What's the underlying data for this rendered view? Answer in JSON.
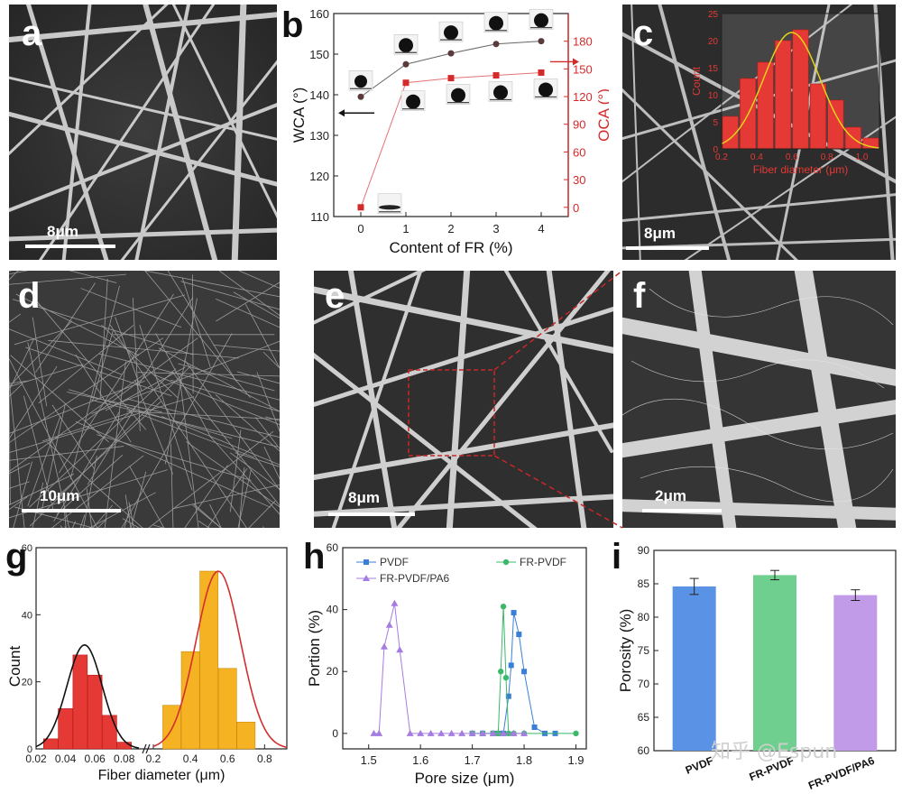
{
  "panels": {
    "a": {
      "label": "a",
      "scale": "8μm"
    },
    "b": {
      "label": "b"
    },
    "c": {
      "label": "c",
      "scale": "8μm"
    },
    "d": {
      "label": "d",
      "scale": "10μm"
    },
    "e": {
      "label": "e",
      "scale": "8μm"
    },
    "f": {
      "label": "f",
      "scale": "2μm"
    },
    "g": {
      "label": "g"
    },
    "h": {
      "label": "h"
    },
    "i": {
      "label": "i"
    }
  },
  "watermark": "知乎 @Espun",
  "colors": {
    "wca": "#222222",
    "oca": "#d42a2a",
    "hist_red": "#e53935",
    "fit_yellow": "#e6d21c",
    "pvdf": "#3a7fd6",
    "fr_pvdf": "#3cb86a",
    "fr_pvdf_pa6": "#a57ce0",
    "bar_pvdf": "#5a93e6",
    "bar_fr": "#6fcf8f",
    "bar_pa6": "#c29be8"
  },
  "chart_data": [
    {
      "id": "b",
      "type": "line",
      "xlabel": "Content of FR (%)",
      "ylabel": "WCA (°)",
      "y2label": "OCA (°)",
      "x": [
        0,
        1,
        2,
        3,
        4
      ],
      "xticks": [
        "0",
        "1",
        "2",
        "3",
        "4"
      ],
      "ylim": [
        110,
        160
      ],
      "yticks": [
        "110",
        "120",
        "130",
        "140",
        "150",
        "160"
      ],
      "y2lim": [
        -10,
        210
      ],
      "y2ticks": [
        "0",
        "30",
        "60",
        "90",
        "120",
        "150",
        "180"
      ],
      "series": [
        {
          "name": "WCA",
          "axis": "left",
          "values": [
            139.5,
            147.5,
            150.2,
            152.5,
            153.2
          ]
        },
        {
          "name": "OCA",
          "axis": "right",
          "values": [
            0,
            135,
            140,
            143,
            146
          ]
        }
      ]
    },
    {
      "id": "c-inset",
      "type": "bar",
      "xlabel": "Fiber diameter (μm)",
      "ylabel": "Count",
      "x": [
        0.25,
        0.35,
        0.45,
        0.55,
        0.65,
        0.75,
        0.85,
        0.95,
        1.05
      ],
      "values": [
        6,
        13,
        16,
        20,
        22,
        12,
        9,
        4,
        2
      ],
      "xlim": [
        0.2,
        1.1
      ],
      "xticks": [
        "0.2",
        "0.4",
        "0.6",
        "0.8",
        "1.0"
      ],
      "ylim": [
        0,
        25
      ],
      "yticks": [
        "0",
        "5",
        "10",
        "15",
        "20",
        "25"
      ]
    },
    {
      "id": "g",
      "type": "bar",
      "xlabel": "Fiber diameter (μm)",
      "ylabel": "Count",
      "xticks": [
        "0.02",
        "0.04",
        "0.06",
        "0.08",
        "0.2",
        "0.4",
        "0.6",
        "0.8"
      ],
      "ylim": [
        0,
        60
      ],
      "yticks": [
        "0",
        "20",
        "40",
        "60"
      ],
      "series": [
        {
          "name": "small",
          "x": [
            0.03,
            0.04,
            0.05,
            0.06,
            0.07,
            0.08
          ],
          "values": [
            3,
            12,
            28,
            22,
            10,
            2
          ]
        },
        {
          "name": "large",
          "x": [
            0.3,
            0.4,
            0.5,
            0.6,
            0.7,
            0.8
          ],
          "values": [
            13,
            29,
            53,
            24,
            8,
            0
          ]
        }
      ]
    },
    {
      "id": "h",
      "type": "line",
      "xlabel": "Pore size (μm)",
      "ylabel": "Portion (%)",
      "xlim": [
        1.45,
        1.92
      ],
      "xticks": [
        "1.5",
        "1.6",
        "1.7",
        "1.8",
        "1.9"
      ],
      "ylim": [
        -5,
        60
      ],
      "yticks": [
        "0",
        "20",
        "40",
        "60"
      ],
      "legend": [
        "PVDF",
        "FR-PVDF",
        "FR-PVDF/PA6"
      ],
      "series": [
        {
          "name": "PVDF",
          "x": [
            1.7,
            1.72,
            1.74,
            1.75,
            1.76,
            1.77,
            1.775,
            1.78,
            1.79,
            1.8,
            1.82,
            1.84,
            1.86
          ],
          "values": [
            0,
            0,
            0,
            0,
            0,
            12,
            22,
            39,
            32,
            20,
            2,
            0,
            0
          ]
        },
        {
          "name": "FR-PVDF",
          "x": [
            1.7,
            1.72,
            1.74,
            1.75,
            1.755,
            1.76,
            1.765,
            1.77,
            1.78,
            1.8,
            1.9
          ],
          "values": [
            0,
            0,
            0,
            0,
            20,
            41,
            18,
            0,
            0,
            0,
            0
          ]
        },
        {
          "name": "FR-PVDF/PA6",
          "x": [
            1.51,
            1.52,
            1.53,
            1.54,
            1.55,
            1.56,
            1.58,
            1.6,
            1.62,
            1.64,
            1.66,
            1.68,
            1.7,
            1.72,
            1.74,
            1.76,
            1.78,
            1.8
          ],
          "values": [
            0,
            0,
            28,
            35,
            42,
            27,
            0,
            0,
            0,
            0,
            0,
            0,
            0,
            0,
            0,
            0,
            0,
            0
          ]
        }
      ]
    },
    {
      "id": "i",
      "type": "bar",
      "ylabel": "Porosity (%)",
      "categories": [
        "PVDF",
        "FR-PVDF",
        "FR-PVDF/PA6"
      ],
      "values": [
        84.6,
        86.3,
        83.3
      ],
      "errors": [
        1.2,
        0.7,
        0.8
      ],
      "ylim": [
        60,
        90
      ],
      "yticks": [
        "60",
        "65",
        "70",
        "75",
        "80",
        "85",
        "90"
      ]
    }
  ]
}
